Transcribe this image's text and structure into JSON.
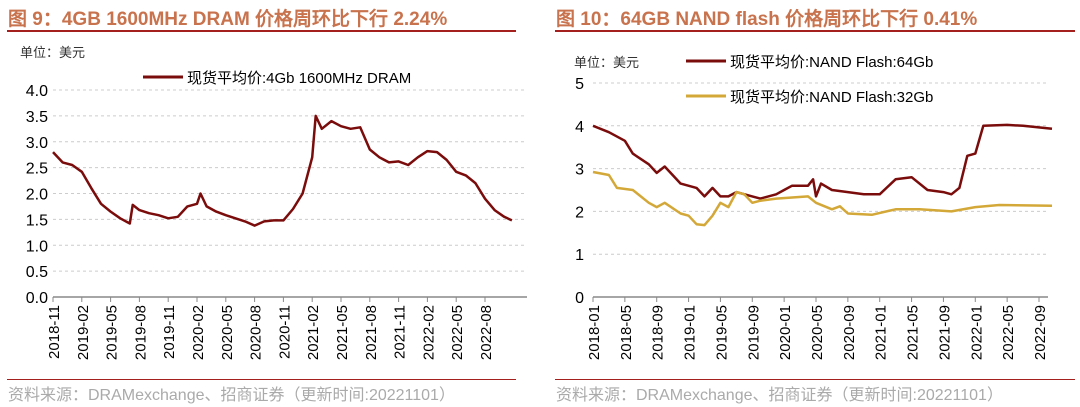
{
  "chart_data": [
    {
      "type": "line",
      "title": "图 9：4GB 1600MHz DRAM 价格周环比下行 2.24%",
      "unit_label": "单位：美元",
      "ylim": [
        0,
        4
      ],
      "yticks": [
        "0.0",
        "0.5",
        "1.0",
        "1.5",
        "2.0",
        "2.5",
        "3.0",
        "3.5",
        "4.0"
      ],
      "xticks": [
        "2018-11",
        "2019-02",
        "2019-05",
        "2019-08",
        "2019-11",
        "2020-02",
        "2020-05",
        "2020-08",
        "2020-11",
        "2021-02",
        "2021-05",
        "2021-08",
        "2021-11",
        "2022-02",
        "2022-05",
        "2022-08"
      ],
      "xlim": [
        "2018-11",
        "2022-11"
      ],
      "grid": true,
      "legend": "top",
      "source": "资料来源：DRAMexchange、招商证券（更新时间:20221101）",
      "series": [
        {
          "name": "现货平均价:4Gb 1600MHz DRAM",
          "color": "#7b0c0c",
          "x": [
            "2018-11",
            "2018-12",
            "2019-01",
            "2019-02",
            "2019-03",
            "2019-04",
            "2019-05",
            "2019-06",
            "2019-07",
            "2019-07-10",
            "2019-08",
            "2019-09",
            "2019-10",
            "2019-11",
            "2019-12",
            "2020-01",
            "2020-02",
            "2020-02-12",
            "2020-03",
            "2020-04",
            "2020-05",
            "2020-06",
            "2020-07",
            "2020-08",
            "2020-09",
            "2020-10",
            "2020-11",
            "2020-12",
            "2021-01",
            "2021-02",
            "2021-02-12",
            "2021-03",
            "2021-04",
            "2021-05",
            "2021-06",
            "2021-07",
            "2021-08",
            "2021-09",
            "2021-10",
            "2021-11",
            "2021-12",
            "2022-01",
            "2022-02",
            "2022-03",
            "2022-04",
            "2022-05",
            "2022-06",
            "2022-07",
            "2022-08",
            "2022-09",
            "2022-10",
            "2022-10-25"
          ],
          "y": [
            2.8,
            2.6,
            2.55,
            2.42,
            2.1,
            1.8,
            1.65,
            1.52,
            1.42,
            1.78,
            1.68,
            1.62,
            1.58,
            1.52,
            1.55,
            1.75,
            1.8,
            2.0,
            1.75,
            1.65,
            1.58,
            1.52,
            1.46,
            1.38,
            1.46,
            1.48,
            1.48,
            1.7,
            2.0,
            2.7,
            3.5,
            3.25,
            3.4,
            3.3,
            3.25,
            3.28,
            2.85,
            2.7,
            2.6,
            2.62,
            2.55,
            2.7,
            2.82,
            2.8,
            2.65,
            2.42,
            2.35,
            2.2,
            1.9,
            1.68,
            1.55,
            1.48
          ]
        }
      ]
    },
    {
      "type": "line",
      "title": "图 10：64GB NAND flash 价格周环比下行 0.41%",
      "unit_label": "单位：美元",
      "ylim": [
        0,
        5
      ],
      "yticks": [
        "0",
        "1",
        "2",
        "3",
        "4",
        "5"
      ],
      "xticks": [
        "2018-01",
        "2018-05",
        "2018-09",
        "2019-01",
        "2019-05",
        "2019-09",
        "2020-01",
        "2020-05",
        "2020-09",
        "2021-01",
        "2021-05",
        "2021-09",
        "2022-01",
        "2022-05",
        "2022-09"
      ],
      "xlim": [
        "2018-01",
        "2022-10-20"
      ],
      "grid": true,
      "legend": "top",
      "source": "资料来源：DRAMexchange、招商证券（更新时间:20221101）",
      "series": [
        {
          "name": "现货平均价:NAND Flash:64Gb",
          "color": "#7b0c0c",
          "x": [
            "2018-01",
            "2018-03",
            "2018-05",
            "2018-06",
            "2018-08",
            "2018-09",
            "2018-10",
            "2018-12",
            "2019-02",
            "2019-03",
            "2019-04",
            "2019-05",
            "2019-06",
            "2019-07",
            "2019-09",
            "2019-10",
            "2019-12",
            "2020-01",
            "2020-02",
            "2020-04",
            "2020-04-20",
            "2020-05",
            "2020-05-20",
            "2020-07",
            "2020-09",
            "2020-11",
            "2021-01",
            "2021-03",
            "2021-05",
            "2021-07",
            "2021-09",
            "2021-10",
            "2021-11",
            "2021-12",
            "2022-01",
            "2022-02",
            "2022-05",
            "2022-07",
            "2022-10-20"
          ],
          "y": [
            4.0,
            3.85,
            3.65,
            3.35,
            3.1,
            2.9,
            3.05,
            2.65,
            2.55,
            2.35,
            2.55,
            2.35,
            2.35,
            2.45,
            2.35,
            2.3,
            2.4,
            2.5,
            2.6,
            2.6,
            2.75,
            2.35,
            2.65,
            2.5,
            2.45,
            2.4,
            2.4,
            2.75,
            2.8,
            2.5,
            2.45,
            2.4,
            2.55,
            3.3,
            3.35,
            4.0,
            4.02,
            4.0,
            3.93
          ]
        },
        {
          "name": "现货平均价:NAND Flash:32Gb",
          "color": "#d4a838",
          "x": [
            "2018-01",
            "2018-03",
            "2018-04",
            "2018-06",
            "2018-08",
            "2018-09",
            "2018-10",
            "2018-12",
            "2019-01",
            "2019-02",
            "2019-03",
            "2019-04",
            "2019-05",
            "2019-06",
            "2019-07",
            "2019-08",
            "2019-09",
            "2019-10",
            "2019-12",
            "2020-04",
            "2020-05",
            "2020-07",
            "2020-08",
            "2020-09",
            "2020-12",
            "2021-03",
            "2021-06",
            "2021-10",
            "2022-01",
            "2022-04",
            "2022-10-20"
          ],
          "y": [
            2.92,
            2.85,
            2.55,
            2.5,
            2.2,
            2.1,
            2.2,
            1.95,
            1.9,
            1.7,
            1.68,
            1.9,
            2.2,
            2.1,
            2.45,
            2.4,
            2.2,
            2.25,
            2.3,
            2.35,
            2.2,
            2.05,
            2.12,
            1.95,
            1.92,
            2.05,
            2.05,
            2.0,
            2.1,
            2.15,
            2.13
          ]
        }
      ]
    }
  ]
}
